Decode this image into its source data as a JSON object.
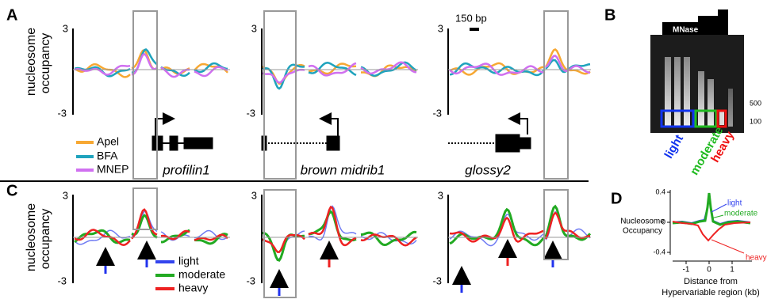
{
  "panel_a": {
    "letter": "A",
    "y_label": [
      "nucleosome",
      "occupancy"
    ],
    "y_tick_top": "3",
    "y_tick_bottom": "-3",
    "scale_bar": "150 bp",
    "legend": [
      "Apel",
      "BFA",
      "MNEP"
    ],
    "genes": [
      "profilin1",
      "brown midrib1",
      "glossy2"
    ]
  },
  "panel_b": {
    "letter": "B",
    "enzyme": "MNase",
    "markers": [
      "500",
      "100"
    ],
    "fractions": [
      "light",
      "moderate",
      "heavy"
    ]
  },
  "panel_c": {
    "letter": "C",
    "y_label": [
      "nucleosome",
      "occupancy"
    ],
    "y_tick_top": "3",
    "y_tick_bottom": "-3",
    "legend": [
      "light",
      "moderate",
      "heavy"
    ]
  },
  "panel_d": {
    "letter": "D",
    "y_label": [
      "Nucleosome",
      "Occupancy"
    ],
    "y_ticks": [
      "0.4",
      "0",
      "-0.4"
    ],
    "x_ticks": [
      "-1",
      "0",
      "1"
    ],
    "x_label": [
      "Distance from",
      "Hypervariable region (kb)"
    ],
    "annotations": [
      "light",
      "moderate",
      "heavy"
    ]
  }
}
